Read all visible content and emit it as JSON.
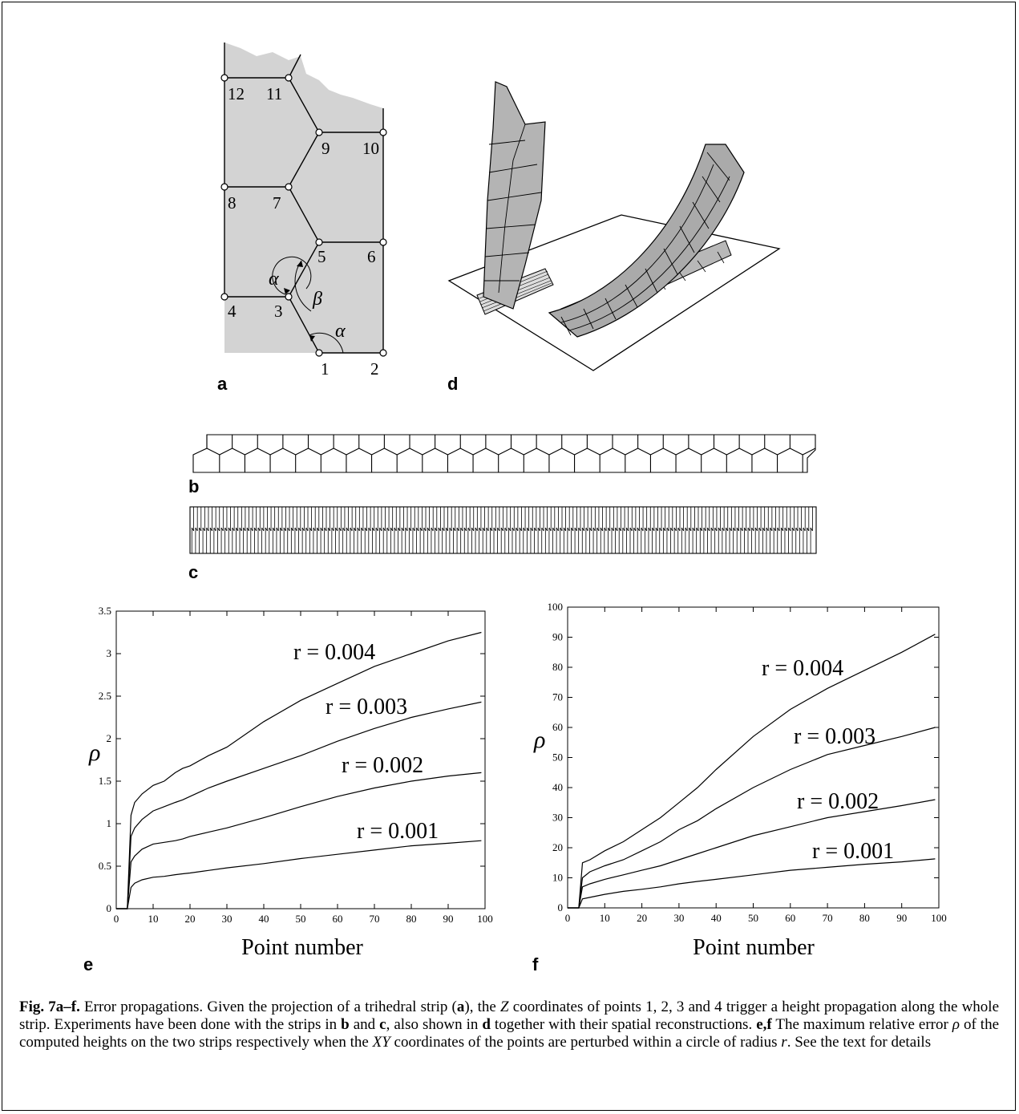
{
  "panel_labels": {
    "a": "a",
    "b": "b",
    "c": "c",
    "d": "d",
    "e": "e",
    "f": "f"
  },
  "diagram_a": {
    "point_labels": [
      "1",
      "2",
      "3",
      "4",
      "5",
      "6",
      "7",
      "8",
      "9",
      "10",
      "11",
      "12"
    ],
    "angle_alpha": "α",
    "angle_beta": "β"
  },
  "chart_data": [
    {
      "type": "line",
      "panel": "e",
      "xlabel": "Point number",
      "ylabel": "ρ",
      "xlim": [
        0,
        100
      ],
      "ylim": [
        0,
        3.5
      ],
      "xticks": [
        "0",
        "10",
        "20",
        "30",
        "40",
        "50",
        "60",
        "70",
        "80",
        "90",
        "100"
      ],
      "yticks": [
        "0",
        "0.5",
        "1",
        "1.5",
        "2",
        "2.5",
        "3",
        "3.5"
      ],
      "series": [
        {
          "name": "r = 0.004",
          "x": [
            0,
            3,
            4,
            5,
            7,
            10,
            13,
            16,
            18,
            20,
            25,
            30,
            40,
            50,
            60,
            70,
            80,
            90,
            99
          ],
          "y": [
            0,
            0,
            1.1,
            1.25,
            1.35,
            1.45,
            1.5,
            1.6,
            1.65,
            1.68,
            1.8,
            1.9,
            2.2,
            2.45,
            2.65,
            2.85,
            3.0,
            3.15,
            3.25
          ]
        },
        {
          "name": "r = 0.003",
          "x": [
            0,
            3,
            4,
            5,
            7,
            10,
            13,
            16,
            18,
            20,
            25,
            30,
            40,
            50,
            60,
            70,
            80,
            90,
            99
          ],
          "y": [
            0,
            0,
            0.85,
            0.95,
            1.05,
            1.15,
            1.2,
            1.25,
            1.28,
            1.32,
            1.42,
            1.5,
            1.65,
            1.8,
            1.97,
            2.12,
            2.25,
            2.35,
            2.43
          ]
        },
        {
          "name": "r = 0.002",
          "x": [
            0,
            3,
            4,
            5,
            7,
            10,
            13,
            16,
            18,
            20,
            25,
            30,
            40,
            50,
            60,
            70,
            80,
            90,
            99
          ],
          "y": [
            0,
            0,
            0.55,
            0.62,
            0.7,
            0.76,
            0.78,
            0.8,
            0.82,
            0.85,
            0.9,
            0.95,
            1.07,
            1.2,
            1.32,
            1.42,
            1.5,
            1.56,
            1.6
          ]
        },
        {
          "name": "r = 0.001",
          "x": [
            0,
            3,
            4,
            5,
            7,
            10,
            13,
            16,
            18,
            20,
            25,
            30,
            40,
            50,
            60,
            70,
            80,
            90,
            99
          ],
          "y": [
            0,
            0,
            0.25,
            0.3,
            0.34,
            0.37,
            0.38,
            0.4,
            0.41,
            0.42,
            0.45,
            0.48,
            0.53,
            0.59,
            0.64,
            0.69,
            0.74,
            0.77,
            0.8
          ]
        }
      ]
    },
    {
      "type": "line",
      "panel": "f",
      "xlabel": "Point number",
      "ylabel": "ρ",
      "xlim": [
        0,
        100
      ],
      "ylim": [
        0,
        100
      ],
      "xticks": [
        "0",
        "10",
        "20",
        "30",
        "40",
        "50",
        "60",
        "70",
        "80",
        "90",
        "100"
      ],
      "yticks": [
        "0",
        "10",
        "20",
        "30",
        "40",
        "50",
        "60",
        "70",
        "80",
        "90",
        "100"
      ],
      "series": [
        {
          "name": "r = 0.004",
          "x": [
            0,
            3,
            4,
            6,
            10,
            15,
            20,
            25,
            30,
            35,
            40,
            50,
            60,
            70,
            80,
            90,
            99
          ],
          "y": [
            0,
            0,
            15,
            16,
            19,
            22,
            26,
            30,
            35,
            40,
            46,
            57,
            66,
            73,
            79,
            85,
            91
          ]
        },
        {
          "name": "r = 0.003",
          "x": [
            0,
            3,
            4,
            6,
            10,
            15,
            20,
            25,
            30,
            35,
            40,
            50,
            60,
            70,
            80,
            90,
            99
          ],
          "y": [
            0,
            0,
            10,
            12,
            14,
            16,
            19,
            22,
            26,
            29,
            33,
            40,
            46,
            51,
            54,
            57,
            60
          ]
        },
        {
          "name": "r = 0.002",
          "x": [
            0,
            3,
            4,
            6,
            10,
            15,
            20,
            25,
            30,
            35,
            40,
            50,
            60,
            70,
            80,
            90,
            99
          ],
          "y": [
            0,
            0,
            7,
            8,
            9.5,
            11,
            12.5,
            14,
            16,
            18,
            20,
            24,
            27,
            30,
            32,
            34,
            36
          ]
        },
        {
          "name": "r = 0.001",
          "x": [
            0,
            3,
            4,
            6,
            10,
            15,
            20,
            25,
            30,
            35,
            40,
            50,
            60,
            70,
            80,
            90,
            99
          ],
          "y": [
            0,
            0,
            3,
            3.5,
            4.5,
            5.5,
            6.2,
            7,
            8,
            8.8,
            9.5,
            11,
            12.5,
            13.5,
            14.5,
            15.3,
            16.3
          ]
        }
      ]
    }
  ],
  "caption": {
    "figure_label": "Fig. 7a–f.",
    "part1": " Error propagations. Given the projection of a trihedral strip (",
    "ref_a": "a",
    "part2": "), the ",
    "var_z": "Z",
    "part3": " coordinates of points 1, 2, 3 and 4 trigger a height propagation along the whole strip. Experiments have been done with the strips in ",
    "ref_b": "b",
    "part4": " and ",
    "ref_c": "c",
    "part5": ", also shown in ",
    "ref_d": "d",
    "part6": " together with their spatial reconstructions. ",
    "ref_ef": "e,f",
    "part7": " The maximum relative error ",
    "var_rho": "ρ",
    "part8": " of the computed heights on the two strips respectively when the ",
    "var_xy": "XY",
    "part9": " coordinates of the points are perturbed within a circle of radius ",
    "var_r": "r",
    "part10": ". See the text for details"
  }
}
